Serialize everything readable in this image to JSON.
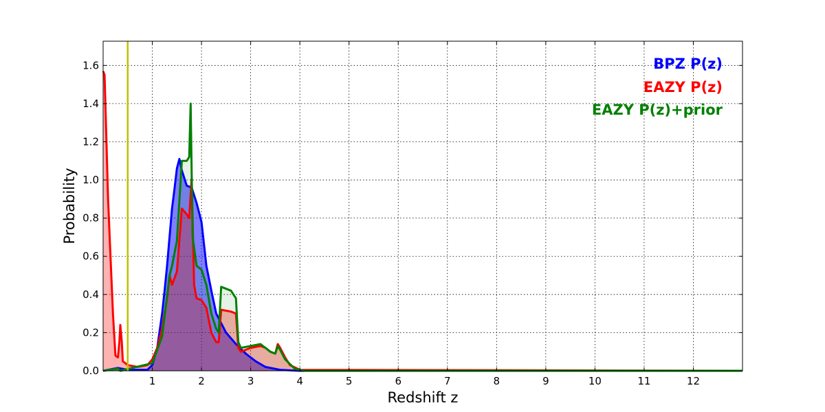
{
  "chart_data": {
    "type": "area",
    "title": "",
    "xlabel": "Redshift z",
    "ylabel": "Probability",
    "xlim": [
      0,
      13
    ],
    "ylim": [
      0,
      1.727
    ],
    "xticks": [
      1,
      2,
      3,
      4,
      5,
      6,
      7,
      8,
      9,
      10,
      11,
      12
    ],
    "xtick_labels": [
      "1",
      "2",
      "3",
      "4",
      "5",
      "6",
      "7",
      "8",
      "9",
      "10",
      "11",
      "12"
    ],
    "yticks": [
      0,
      0.2,
      0.4,
      0.6,
      0.8,
      1.0,
      1.2,
      1.4,
      1.6
    ],
    "ytick_labels": [
      "0.0",
      "0.2",
      "0.4",
      "0.6",
      "0.8",
      "1.0",
      "1.2",
      "1.4",
      "1.6"
    ],
    "grid": true,
    "legend_placement": "top-right",
    "vline": {
      "x": 0.5,
      "color": "#bfbf00"
    },
    "series": [
      {
        "name": "BPZ P(z)",
        "color": "#0000ff",
        "fill_opacity": 0.5,
        "x": [
          0,
          0.3,
          0.5,
          0.9,
          1.0,
          1.1,
          1.2,
          1.25,
          1.3,
          1.35,
          1.4,
          1.45,
          1.5,
          1.55,
          1.6,
          1.7,
          1.8,
          1.9,
          2.0,
          2.1,
          2.2,
          2.3,
          2.5,
          2.7,
          2.9,
          3.1,
          3.3,
          3.6,
          4.0,
          13
        ],
        "y": [
          0,
          0.015,
          0.005,
          0.005,
          0.03,
          0.12,
          0.3,
          0.42,
          0.55,
          0.7,
          0.85,
          0.95,
          1.06,
          1.11,
          1.05,
          0.97,
          0.96,
          0.88,
          0.78,
          0.55,
          0.42,
          0.3,
          0.2,
          0.14,
          0.09,
          0.05,
          0.02,
          0.005,
          0,
          0
        ]
      },
      {
        "name": "EAZY P(z)",
        "color": "#ff0000",
        "fill_opacity": 0.3,
        "x": [
          0,
          0.03,
          0.1,
          0.15,
          0.2,
          0.25,
          0.3,
          0.33,
          0.35,
          0.38,
          0.4,
          0.5,
          0.7,
          0.9,
          1.0,
          1.1,
          1.2,
          1.3,
          1.35,
          1.4,
          1.5,
          1.6,
          1.7,
          1.75,
          1.8,
          1.85,
          1.9,
          2.0,
          2.1,
          2.2,
          2.3,
          2.35,
          2.4,
          2.6,
          2.7,
          2.75,
          2.8,
          3.0,
          3.2,
          3.3,
          3.4,
          3.5,
          3.55,
          3.6,
          3.7,
          3.8,
          4.0,
          13
        ],
        "y": [
          1.57,
          1.55,
          0.9,
          0.6,
          0.3,
          0.08,
          0.07,
          0.15,
          0.24,
          0.15,
          0.05,
          0.03,
          0.02,
          0.03,
          0.06,
          0.12,
          0.22,
          0.38,
          0.5,
          0.45,
          0.52,
          0.85,
          0.82,
          0.8,
          1.01,
          0.45,
          0.38,
          0.37,
          0.33,
          0.2,
          0.15,
          0.15,
          0.32,
          0.31,
          0.3,
          0.12,
          0.1,
          0.12,
          0.13,
          0.12,
          0.1,
          0.09,
          0.14,
          0.12,
          0.07,
          0.03,
          0.005,
          0
        ]
      },
      {
        "name": "EAZY P(z)+prior",
        "color": "#008000",
        "fill_opacity": 0.1,
        "x": [
          0,
          0.3,
          0.35,
          1.0,
          1.2,
          1.35,
          1.4,
          1.5,
          1.6,
          1.7,
          1.75,
          1.78,
          1.82,
          1.9,
          2.0,
          2.1,
          2.2,
          2.3,
          2.35,
          2.4,
          2.6,
          2.7,
          2.75,
          2.8,
          3.0,
          3.2,
          3.3,
          3.4,
          3.5,
          3.55,
          3.6,
          3.7,
          3.9,
          4.1,
          13
        ],
        "y": [
          0,
          0.012,
          0,
          0.04,
          0.18,
          0.5,
          0.55,
          0.68,
          1.1,
          1.1,
          1.12,
          1.4,
          0.7,
          0.55,
          0.53,
          0.45,
          0.3,
          0.22,
          0.2,
          0.44,
          0.42,
          0.38,
          0.15,
          0.12,
          0.13,
          0.14,
          0.12,
          0.1,
          0.09,
          0.13,
          0.11,
          0.06,
          0.01,
          0,
          0
        ]
      }
    ]
  }
}
